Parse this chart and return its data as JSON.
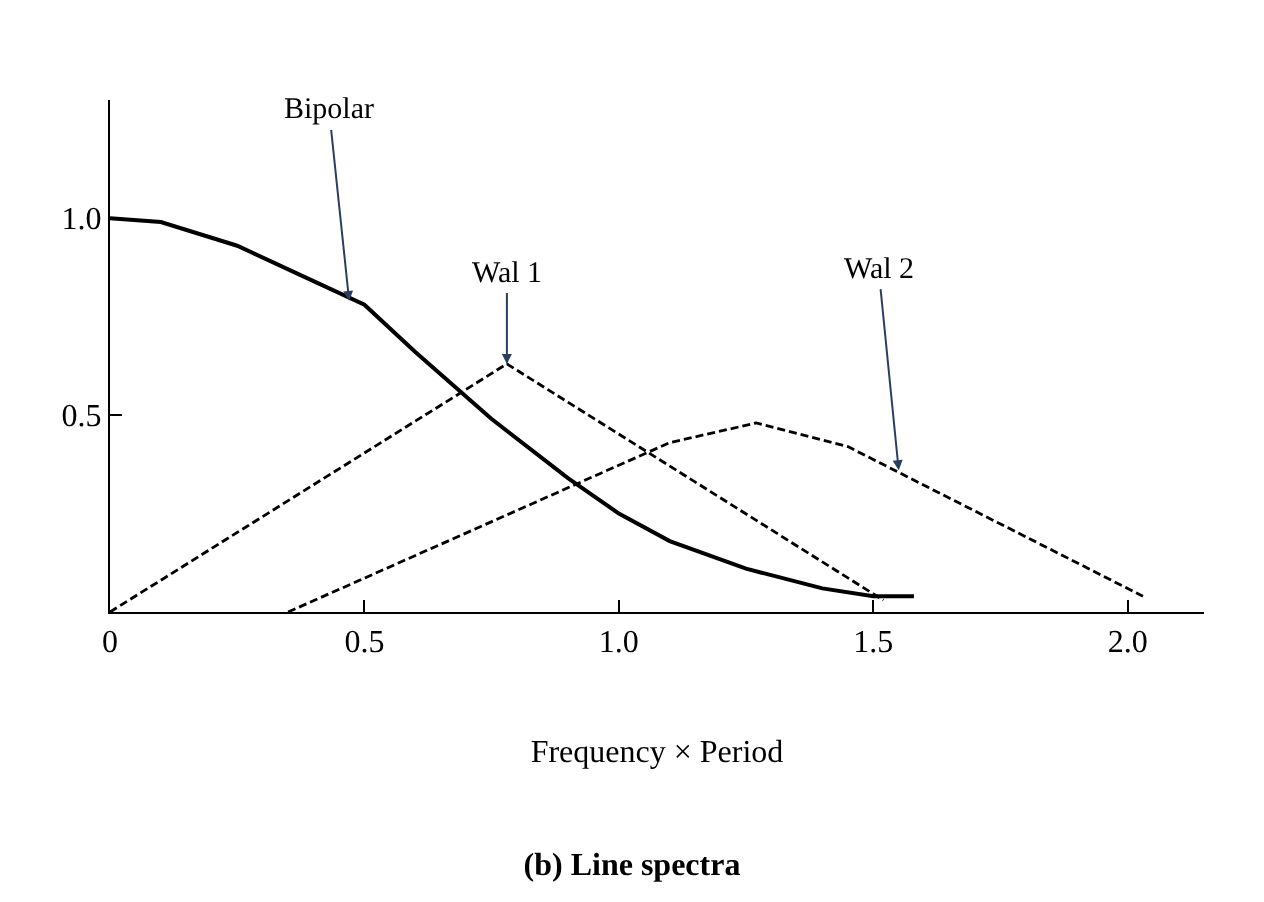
{
  "chart_data": {
    "type": "line",
    "title": "(b) Line spectra",
    "xlabel": "Frequency × Period",
    "xlim": [
      0,
      2.15
    ],
    "ylim": [
      0,
      1.3
    ],
    "xticks": [
      0,
      0.5,
      {
        "value": 1,
        "label": "1.0"
      },
      1.5,
      {
        "value": 2,
        "label": "2.0"
      }
    ],
    "yticks": [
      0.5,
      {
        "value": 1,
        "label": "1.0"
      }
    ],
    "marker": "none",
    "series": [
      {
        "color": "#000000",
        "line_style": "solid",
        "x": [
          0,
          0.1,
          0.25,
          0.4,
          0.5,
          0.6,
          0.75,
          0.9,
          1.0,
          1.1,
          1.25,
          1.4,
          1.5,
          1.58
        ],
        "values": [
          1.0,
          0.99,
          0.93,
          0.84,
          0.78,
          0.66,
          0.49,
          0.34,
          0.25,
          0.18,
          0.11,
          0.06,
          0.04,
          0.04
        ]
      },
      {
        "color": "#000000",
        "line_style": "dashed",
        "x": [
          0,
          0.78,
          1.52
        ],
        "values": [
          0,
          0.63,
          0.03
        ]
      },
      {
        "color": "#000000",
        "line_style": "dashed",
        "x": [
          0.35,
          1.1,
          1.27,
          1.45,
          2.03
        ],
        "values": [
          0,
          0.43,
          0.48,
          0.42,
          0.04
        ]
      }
    ],
    "annotations": [
      {
        "text": "Bipolar",
        "x": 0.47,
        "y": 0.79
      },
      {
        "text": "Wal 1",
        "x": 0.78,
        "y": 0.63
      },
      {
        "text": "Wal 2",
        "x": 1.55,
        "y": 0.36
      }
    ]
  }
}
